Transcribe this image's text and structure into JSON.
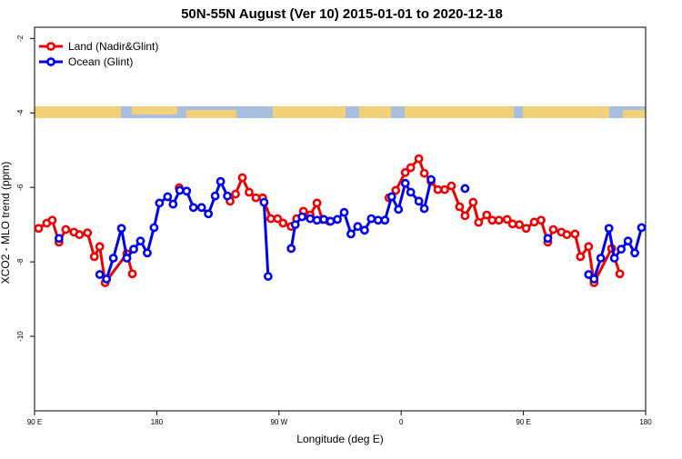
{
  "chart_data": {
    "type": "line",
    "title": "50N-55N August (Ver 10)   2015-01-01 to 2020-12-18",
    "x_label": "Longitude (deg E)",
    "y_label": "XCO2 - MLO trend (ppm)",
    "xlim": [
      90,
      540
    ],
    "ylim": [
      -12,
      -1.7
    ],
    "xticks": [
      {
        "value": 90,
        "label": "90 E"
      },
      180,
      {
        "value": 270,
        "label": "90 W"
      },
      {
        "value": 360,
        "label": "0"
      },
      {
        "value": 450,
        "label": "90 E"
      },
      {
        "value": 540,
        "label": "180"
      }
    ],
    "yticks": [
      -10,
      -8,
      -6,
      -4,
      -2
    ],
    "legend": "top-left",
    "series": [
      {
        "name": "Land (Nadir&Glint)",
        "color": "#ee0000",
        "x": [
          93,
          99,
          103,
          108,
          113,
          119,
          123,
          129,
          134,
          138,
          142,
          158,
          162,
          180,
          196.5,
          210,
          234,
          238,
          243,
          248,
          253,
          258,
          264,
          269,
          273,
          279,
          283,
          288,
          293,
          298,
          302,
          307,
          330,
          351,
          356,
          363,
          367,
          373,
          377,
          382,
          387,
          392,
          397,
          403,
          407,
          413,
          417,
          423,
          427,
          432,
          438,
          442,
          447,
          452,
          458,
          463,
          468,
          472,
          478,
          482,
          488,
          492,
          498,
          502,
          515,
          521
        ],
        "values": [
          -7.1,
          -6.96,
          -6.88,
          -7.47,
          -7.13,
          -7.2,
          -7.27,
          -7.22,
          -7.86,
          -7.59,
          -8.56,
          -7.78,
          -8.32,
          null,
          -6.01,
          null,
          -6.37,
          -6.18,
          -5.74,
          -6.13,
          -6.28,
          -6.28,
          -6.84,
          -6.84,
          -6.96,
          -7.05,
          -6.84,
          -6.64,
          -6.74,
          -6.42,
          -6.86,
          -6.91,
          null,
          -6.28,
          -6.08,
          -5.6,
          -5.47,
          -5.23,
          -5.62,
          -5.84,
          -6.06,
          -6.06,
          -5.96,
          -6.52,
          -6.76,
          -6.4,
          -6.94,
          -6.74,
          -6.88,
          -6.88,
          -6.86,
          -6.98,
          -7.0,
          -7.1,
          -6.93,
          -6.88,
          -7.47,
          -7.13,
          -7.2,
          -7.27,
          -7.25,
          -7.86,
          -7.59,
          -8.56,
          -7.64,
          -8.32
        ]
      },
      {
        "name": "Ocean (Glint)",
        "color": "#0000ee",
        "x": [
          108,
          120,
          138,
          143,
          148,
          154,
          158,
          163,
          168,
          173,
          178,
          182,
          188,
          192,
          197,
          202,
          207,
          213,
          218,
          223,
          227,
          232,
          245,
          259,
          262,
          270,
          279,
          282,
          287,
          293,
          298,
          303,
          308,
          313,
          318,
          323,
          328,
          333,
          338,
          343,
          348,
          353,
          358,
          363,
          367,
          373,
          377,
          382,
          395,
          407,
          440,
          468,
          480,
          498,
          502,
          507,
          513,
          517,
          522,
          527,
          532,
          537
        ],
        "values": [
          -7.37,
          null,
          -8.34,
          -8.46,
          -7.9,
          -7.1,
          -7.9,
          -7.66,
          -7.44,
          -7.76,
          -7.08,
          -6.42,
          -6.25,
          -6.45,
          -6.08,
          -6.1,
          -6.54,
          -6.54,
          -6.71,
          -6.23,
          -5.84,
          -6.23,
          null,
          -6.4,
          -8.39,
          null,
          -7.64,
          -7.0,
          -6.79,
          -6.84,
          -6.88,
          -6.86,
          -6.91,
          -6.86,
          -6.67,
          -7.25,
          -7.05,
          -7.15,
          -6.84,
          -6.88,
          -6.88,
          -6.25,
          -6.59,
          -5.89,
          -6.13,
          -6.37,
          -6.57,
          -5.79,
          null,
          -6.03,
          null,
          -7.37,
          null,
          -8.34,
          -8.46,
          -7.9,
          -7.1,
          -7.9,
          -7.66,
          -7.44,
          -7.76,
          -7.08
        ]
      }
    ]
  }
}
